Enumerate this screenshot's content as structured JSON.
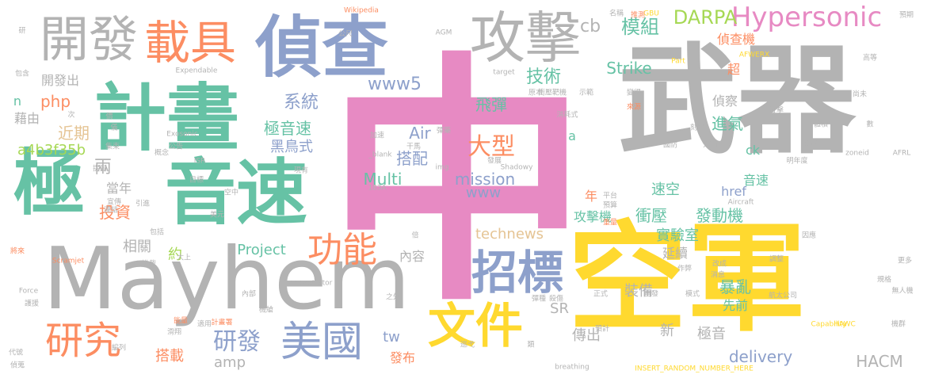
{
  "palette": {
    "pink": "#e78ac3",
    "yellow": "#ffd92f",
    "gray": "#b3b3b3",
    "green": "#66c2a5",
    "blue": "#8da0cb",
    "orange": "#fc8d62",
    "lime": "#a6d854",
    "tan": "#e5c494"
  },
  "words": [
    {
      "text": "中"
    },
    {
      "text": "武器"
    },
    {
      "text": "空軍"
    },
    {
      "text": "Mayhem"
    },
    {
      "text": "計畫"
    },
    {
      "text": "音速"
    },
    {
      "text": "極"
    },
    {
      "text": "偵查"
    },
    {
      "text": "開發"
    },
    {
      "text": "載具"
    },
    {
      "text": "攻擊"
    },
    {
      "text": "文件"
    },
    {
      "text": "招標"
    },
    {
      "text": "美國"
    },
    {
      "text": "研究"
    },
    {
      "text": "功能"
    },
    {
      "text": "Hypersonic"
    },
    {
      "text": "大型"
    },
    {
      "text": "研發"
    },
    {
      "text": "DARPA"
    },
    {
      "text": "模組"
    },
    {
      "text": "cb"
    },
    {
      "text": "技術"
    },
    {
      "text": "飛彈"
    },
    {
      "text": "www5"
    },
    {
      "text": "系統"
    },
    {
      "text": "極音速"
    },
    {
      "text": "php"
    },
    {
      "text": "近期"
    },
    {
      "text": "a4b3f35b"
    },
    {
      "text": "開發出"
    },
    {
      "text": "藉由"
    },
    {
      "text": "n"
    },
    {
      "text": "黑鳥式"
    },
    {
      "text": "兩"
    },
    {
      "text": "當年"
    },
    {
      "text": "投資"
    },
    {
      "text": "相關"
    },
    {
      "text": "約"
    },
    {
      "text": "Project"
    },
    {
      "text": "內容"
    },
    {
      "text": "technews"
    },
    {
      "text": "Air"
    },
    {
      "text": "搭配"
    },
    {
      "text": "mission"
    },
    {
      "text": "Multi"
    },
    {
      "text": "www"
    },
    {
      "text": "Strike"
    },
    {
      "text": "偵查機"
    },
    {
      "text": "超"
    },
    {
      "text": "偵察"
    },
    {
      "text": "進氣"
    },
    {
      "text": "a"
    },
    {
      "text": "ck"
    },
    {
      "text": "速空"
    },
    {
      "text": "音速"
    },
    {
      "text": "href"
    },
    {
      "text": "年"
    },
    {
      "text": "衝壓"
    },
    {
      "text": "發動機"
    },
    {
      "text": "實驗室"
    },
    {
      "text": "攻擊機"
    },
    {
      "text": "延續"
    },
    {
      "text": "暴亂"
    },
    {
      "text": "裝備"
    },
    {
      "text": "先前"
    },
    {
      "text": "傳出"
    },
    {
      "text": "新"
    },
    {
      "text": "極音"
    },
    {
      "text": "delivery"
    },
    {
      "text": "HACM"
    },
    {
      "text": "SR"
    },
    {
      "text": "amp"
    },
    {
      "text": "tw"
    },
    {
      "text": "發布"
    },
    {
      "text": "搭載"
    },
    {
      "text": "Wikipedia"
    },
    {
      "text": "公尺"
    },
    {
      "text": "AGM"
    },
    {
      "text": "Expendable"
    },
    {
      "text": "Force"
    },
    {
      "text": "Demonstrator"
    },
    {
      "text": "target"
    },
    {
      "text": "Exosonic"
    },
    {
      "text": "ISR"
    },
    {
      "text": "_blank"
    },
    {
      "text": "img"
    },
    {
      "text": "183A"
    },
    {
      "text": "Shadowy"
    },
    {
      "text": "zoneid"
    },
    {
      "text": "AFWERX"
    },
    {
      "text": "Part"
    },
    {
      "text": "GBU"
    },
    {
      "text": "AFRL"
    },
    {
      "text": "Aircraft"
    },
    {
      "text": "Scramjet"
    },
    {
      "text": "Capability"
    },
    {
      "text": "HAWC"
    },
    {
      "text": "breathing"
    },
    {
      "text": "INSERT_RANDOM_NUMBER_HERE"
    },
    {
      "text": "加速"
    },
    {
      "text": "彈藥"
    },
    {
      "text": "干馬"
    },
    {
      "text": "發展"
    },
    {
      "text": "衝壓靶機"
    },
    {
      "text": "消耗式"
    },
    {
      "text": "尚未"
    },
    {
      "text": "高等"
    },
    {
      "text": "名稱"
    },
    {
      "text": "推測"
    },
    {
      "text": "預期"
    },
    {
      "text": "無人機"
    },
    {
      "text": "航太公司"
    },
    {
      "text": "規格"
    },
    {
      "text": "機群"
    },
    {
      "text": "更多"
    },
    {
      "text": "包含"
    },
    {
      "text": "研"
    },
    {
      "text": "代號"
    },
    {
      "text": "偵蒐"
    },
    {
      "text": "將來"
    },
    {
      "text": "護援"
    },
    {
      "text": "能量"
    },
    {
      "text": "內部"
    },
    {
      "text": "機艙"
    },
    {
      "text": "之外"
    },
    {
      "text": "彈種"
    },
    {
      "text": "殺傷"
    },
    {
      "text": "正式"
    },
    {
      "text": "自發"
    },
    {
      "text": "模式"
    },
    {
      "text": "消息"
    },
    {
      "text": "改成"
    },
    {
      "text": "調整"
    },
    {
      "text": "因應"
    },
    {
      "text": "明年度"
    },
    {
      "text": "介面"
    },
    {
      "text": "體積"
    },
    {
      "text": "公布"
    },
    {
      "text": "數"
    },
    {
      "text": "平台"
    },
    {
      "text": "預算"
    },
    {
      "text": "重量"
    },
    {
      "text": "美元"
    },
    {
      "text": "包括"
    },
    {
      "text": "掛載"
    },
    {
      "text": "大上"
    },
    {
      "text": "適用"
    },
    {
      "text": "計畫署"
    },
    {
      "text": "編列"
    },
    {
      "text": "巡弋"
    },
    {
      "text": "類"
    },
    {
      "text": "國防"
    },
    {
      "text": "刻星"
    },
    {
      "text": "打擊"
    },
    {
      "text": "變得"
    },
    {
      "text": "來源"
    },
    {
      "text": "示範"
    },
    {
      "text": "原本"
    },
    {
      "text": "次"
    },
    {
      "text": "價"
    },
    {
      "text": "儀"
    },
    {
      "text": "集束"
    },
    {
      "text": "公告"
    },
    {
      "text": "目標"
    },
    {
      "text": "引進"
    },
    {
      "text": "空中"
    },
    {
      "text": "提到"
    },
    {
      "text": "現有"
    },
    {
      "text": "概念"
    },
    {
      "text": "倍"
    },
    {
      "text": "連結"
    },
    {
      "text": "宣傳"
    },
    {
      "text": "滑翔"
    },
    {
      "text": "預計"
    },
    {
      "text": "作弊"
    },
    {
      "text": "碉堡"
    }
  ]
}
